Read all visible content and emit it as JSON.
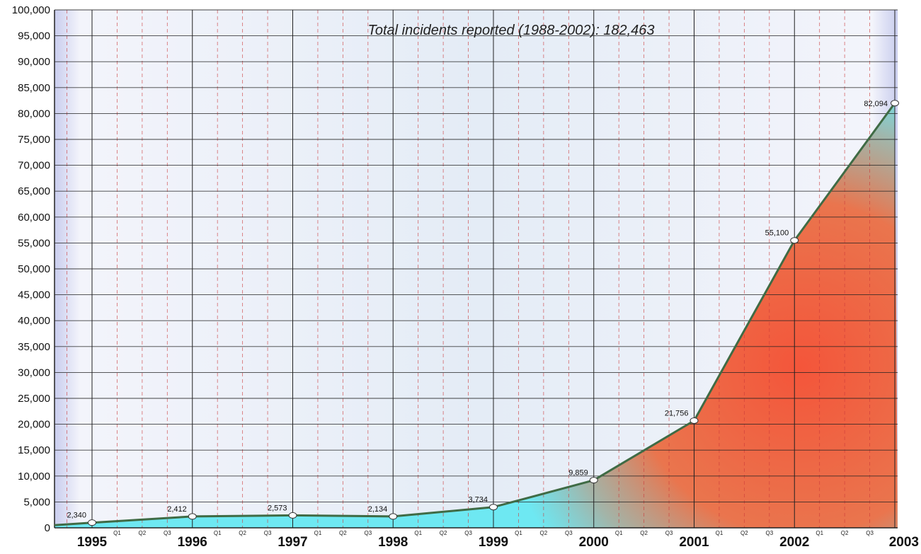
{
  "chart_data": {
    "type": "area",
    "title": "Total incidents reported (1988-2002): 182,463",
    "xlabel": "",
    "ylabel": "",
    "ylim": [
      0,
      100000
    ],
    "y_ticks": [
      "0",
      "5,000",
      "10,000",
      "15,000",
      "20,000",
      "25,000",
      "30,000",
      "35,000",
      "40,000",
      "45,000",
      "50,000",
      "55,000",
      "60,000",
      "65,000",
      "70,000",
      "75,000",
      "80,000",
      "85,000",
      "90,000",
      "95,000",
      "100,000"
    ],
    "year_labels": [
      "1995",
      "1996",
      "1997",
      "1998",
      "1999",
      "2000",
      "2001",
      "2002",
      "2003"
    ],
    "quarter_labels": [
      "Q1",
      "Q2",
      "Q3"
    ],
    "start_value": 500,
    "points": [
      {
        "year": 1995,
        "value": 1000,
        "label": "2,340"
      },
      {
        "year": 1996,
        "value": 2200,
        "label": "2,412"
      },
      {
        "year": 1997,
        "value": 2400,
        "label": "2,573"
      },
      {
        "year": 1998,
        "value": 2200,
        "label": "2,134"
      },
      {
        "year": 1999,
        "value": 4000,
        "label": "3,734"
      },
      {
        "year": 2000,
        "value": 9200,
        "label": "9,859"
      },
      {
        "year": 2001,
        "value": 20700,
        "label": "21,756"
      },
      {
        "year": 2002,
        "value": 55500,
        "label": "55,100"
      },
      {
        "year": 2003,
        "value": 82000,
        "label": "82,094"
      }
    ],
    "grid": true,
    "colors": {
      "area_low": "#6ee8f2",
      "area_high": "#f4623a",
      "line": "#3f6b45",
      "grid_major": "#222222",
      "grid_minor": "#cc3a3a"
    }
  }
}
